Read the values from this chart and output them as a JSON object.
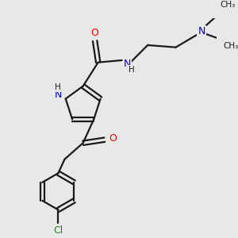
{
  "bg_color": "#e8e8e8",
  "bond_color": "#1a1a1a",
  "oxygen_color": "#ee0000",
  "nitrogen_color": "#0000cc",
  "chlorine_color": "#1a8a1a",
  "line_width": 1.6,
  "figsize": [
    3.0,
    3.0
  ],
  "dpi": 100,
  "xlim": [
    0,
    10
  ],
  "ylim": [
    0,
    10
  ]
}
